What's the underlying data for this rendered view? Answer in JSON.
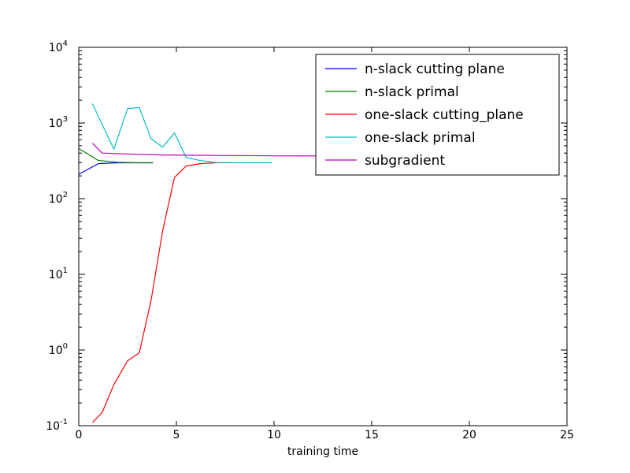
{
  "chart_data": {
    "type": "line",
    "title": "",
    "xlabel": "training time",
    "ylabel": "",
    "xlim": [
      0,
      25
    ],
    "ylim": [
      0.1,
      10000
    ],
    "yscale": "log",
    "grid": false,
    "legend_position": "top-right",
    "x_ticks": [
      "0",
      "5",
      "10",
      "15",
      "20",
      "25"
    ],
    "y_ticks": [
      {
        "base": "10",
        "exp": "-1"
      },
      {
        "base": "10",
        "exp": "0"
      },
      {
        "base": "10",
        "exp": "1"
      },
      {
        "base": "10",
        "exp": "2"
      },
      {
        "base": "10",
        "exp": "3"
      },
      {
        "base": "10",
        "exp": "4"
      }
    ],
    "series": [
      {
        "name": "n-slack cutting plane",
        "color": "#0000ff",
        "x": [
          0.0,
          1.0,
          2.0,
          3.0,
          3.8
        ],
        "y": [
          210,
          290,
          298,
          298,
          298
        ]
      },
      {
        "name": "n-slack primal",
        "color": "#008000",
        "x": [
          0.0,
          1.0,
          2.0,
          3.0,
          3.8
        ],
        "y": [
          460,
          320,
          303,
          298,
          298
        ]
      },
      {
        "name": "one-slack cutting_plane",
        "color": "#ff0000",
        "x": [
          0.7,
          1.2,
          1.8,
          2.5,
          3.1,
          3.7,
          4.3,
          4.9,
          5.5,
          6.2,
          7.0,
          7.8
        ],
        "y": [
          0.11,
          0.15,
          0.35,
          0.72,
          0.92,
          4.5,
          38,
          190,
          270,
          290,
          298,
          300
        ]
      },
      {
        "name": "one-slack primal",
        "color": "#00bfbf",
        "x": [
          0.7,
          1.2,
          1.8,
          2.5,
          3.1,
          3.7,
          4.3,
          4.9,
          5.5,
          6.2,
          7.0,
          7.8,
          9.9
        ],
        "y": [
          1800,
          950,
          450,
          1550,
          1600,
          620,
          480,
          740,
          350,
          320,
          300,
          298,
          298
        ]
      },
      {
        "name": "subgradient",
        "color": "#bf00bf",
        "x": [
          0.7,
          1.2,
          2.5,
          4.3,
          7.0,
          10.0,
          12.5
        ],
        "y": [
          540,
          400,
          390,
          378,
          372,
          368,
          367
        ]
      }
    ]
  }
}
